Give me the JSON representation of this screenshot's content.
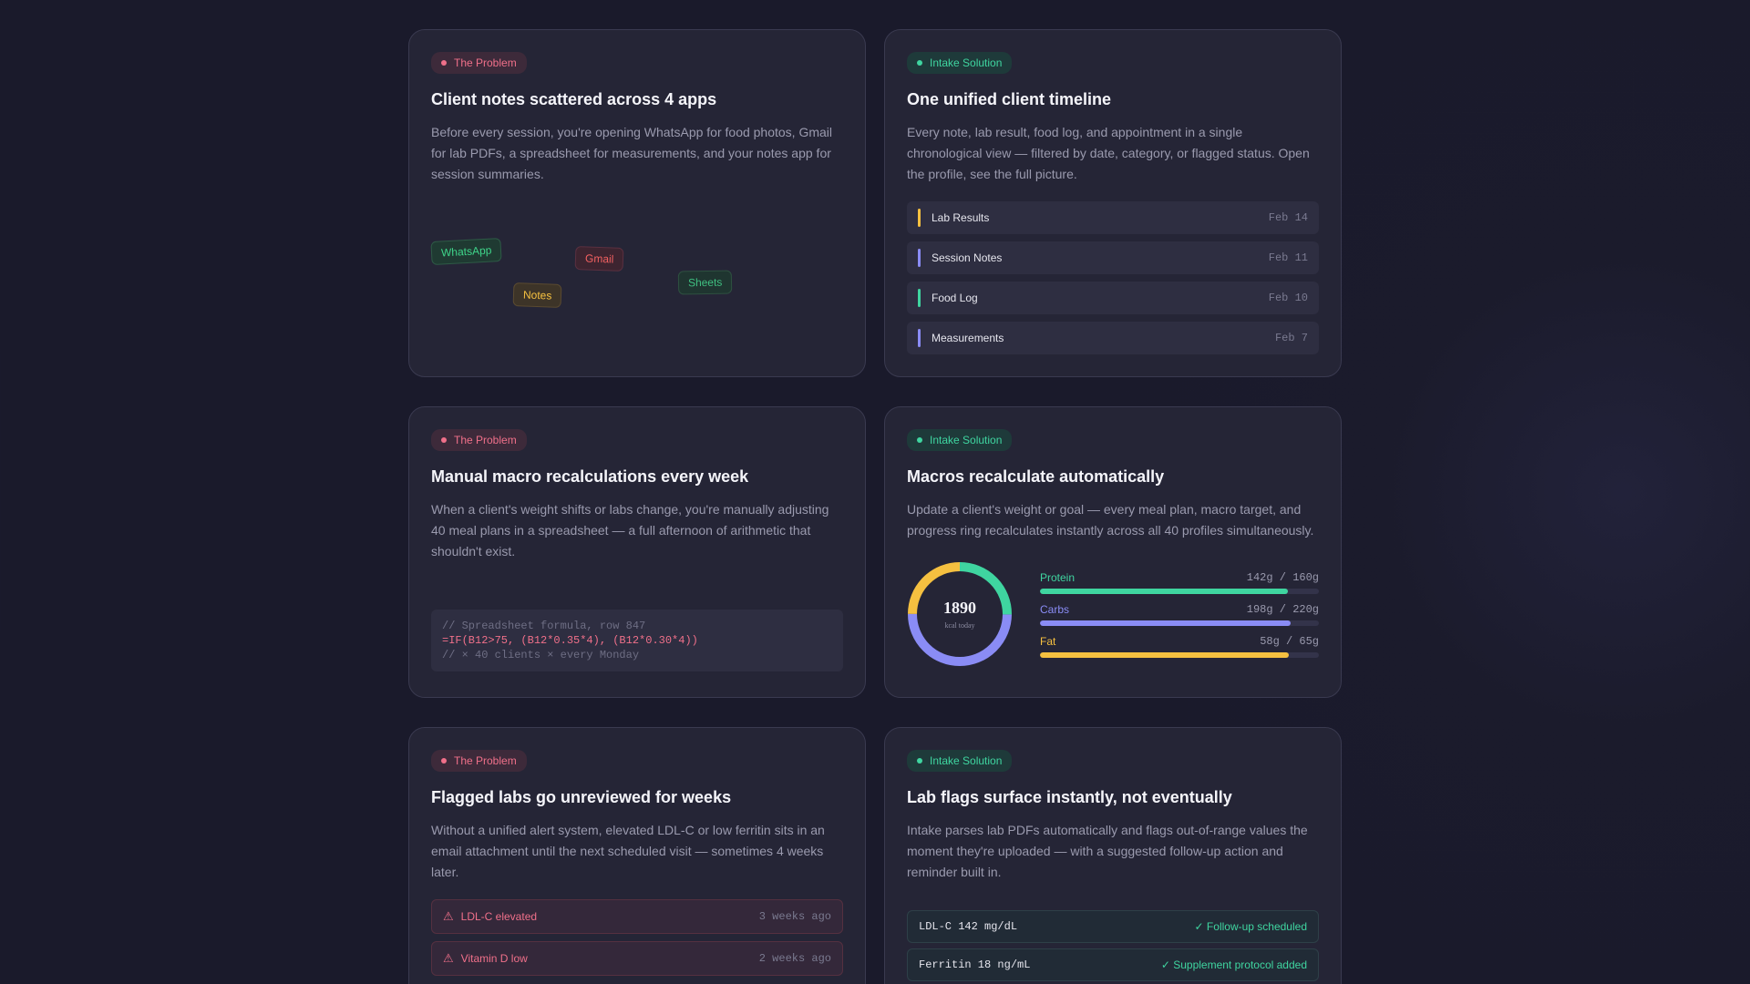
{
  "cards": [
    {
      "badge": "The Problem",
      "title": "Client notes scattered across 4 apps",
      "desc": "Before every session, you're opening WhatsApp for food photos, Gmail for lab PDFs, a spreadsheet for measurements, and your notes app for session summaries.",
      "apps": [
        "WhatsApp",
        "Gmail",
        "Notes",
        "Sheets"
      ]
    },
    {
      "badge": "Intake Solution",
      "title": "One unified client timeline",
      "desc": "Every note, lab result, food log, and appointment in a single chronological view — filtered by date, category, or flagged status. Open the profile, see the full picture.",
      "timeline": [
        {
          "label": "Lab Results",
          "date": "Feb 14",
          "color": "#f5c040"
        },
        {
          "label": "Session Notes",
          "date": "Feb 11",
          "color": "#8a8cf5"
        },
        {
          "label": "Food Log",
          "date": "Feb 10",
          "color": "#3fd5a0"
        },
        {
          "label": "Measurements",
          "date": "Feb 7",
          "color": "#8a8cf5"
        }
      ]
    },
    {
      "badge": "The Problem",
      "title": "Manual macro recalculations every week",
      "desc": "When a client's weight shifts or labs change, you're manually adjusting 40 meal plans in a spreadsheet — a full afternoon of arithmetic that shouldn't exist.",
      "code": [
        "// Spreadsheet formula, row 847",
        "=IF(B12>75, (B12*0.35*4), (B12*0.30*4))",
        "// × 40 clients × every Monday"
      ]
    },
    {
      "badge": "Intake Solution",
      "title": "Macros recalculate automatically",
      "desc": "Update a client's weight or goal — every meal plan, macro target, and progress ring recalculates instantly across all 40 profiles simultaneously.",
      "ring": {
        "value": "1890",
        "sub": "kcal today"
      },
      "macros": [
        {
          "name": "Protein",
          "value": "142g / 160g",
          "fraction": 0.8875,
          "color": "#3fd5a0"
        },
        {
          "name": "Carbs",
          "value": "198g / 220g",
          "fraction": 0.9,
          "color": "#8a8cf5"
        },
        {
          "name": "Fat",
          "value": "58g / 65g",
          "fraction": 0.892,
          "color": "#f5c040"
        }
      ]
    },
    {
      "badge": "The Problem",
      "title": "Flagged labs go unreviewed for weeks",
      "desc": "Without a unified alert system, elevated LDL-C or low ferritin sits in an email attachment until the next scheduled visit — sometimes 4 weeks later.",
      "flags": [
        {
          "icon": "⚠",
          "label": "LDL-C elevated",
          "time": "3 weeks ago"
        },
        {
          "icon": "⚠",
          "label": "Vitamin D low",
          "time": "2 weeks ago"
        }
      ]
    },
    {
      "badge": "Intake Solution",
      "title": "Lab flags surface instantly, not eventually",
      "desc": "Intake parses lab PDFs automatically and flags out-of-range values the moment they're uploaded — with a suggested follow-up action and reminder built in.",
      "results": [
        {
          "label": "LDL-C 142 mg/dL",
          "action": "✓ Follow-up scheduled"
        },
        {
          "label": "Ferritin 18 ng/mL",
          "action": "✓ Supplement protocol added"
        }
      ]
    }
  ]
}
